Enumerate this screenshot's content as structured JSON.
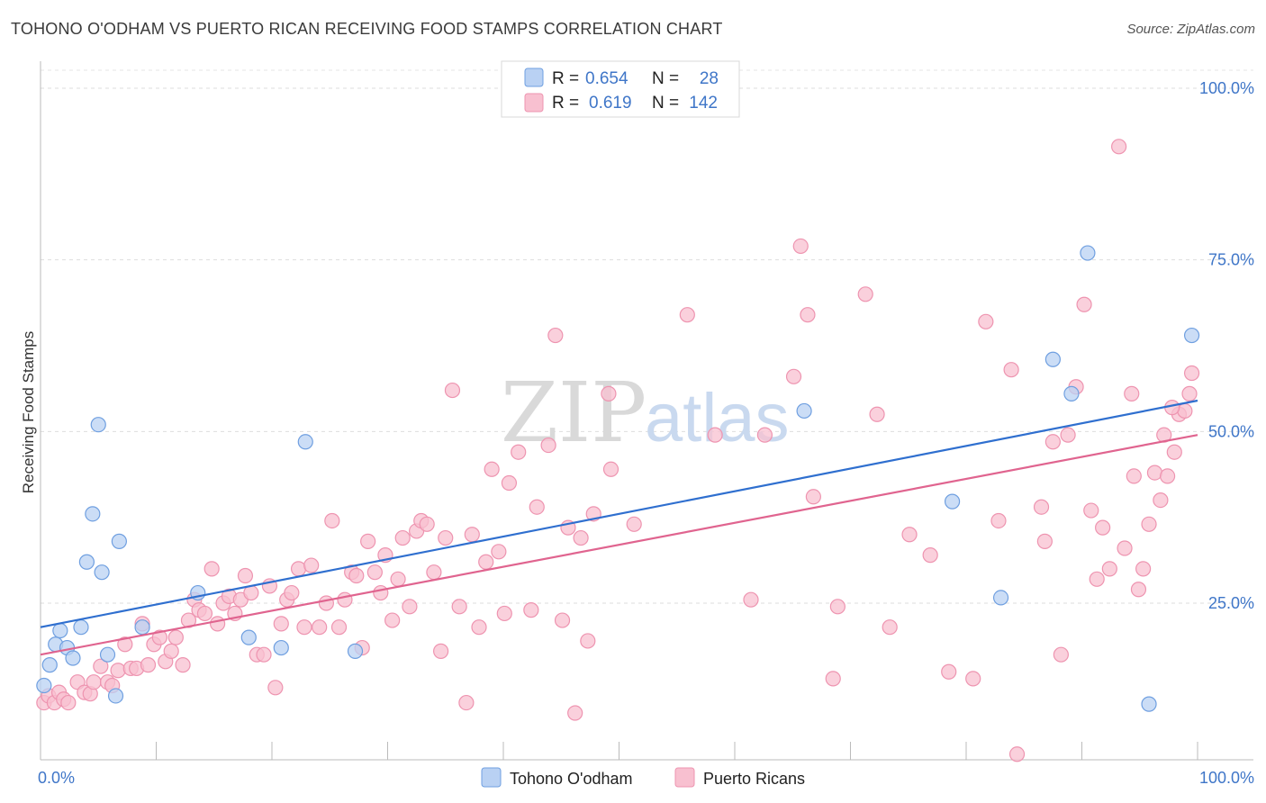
{
  "header": {
    "title": "TOHONO O'ODHAM VS PUERTO RICAN RECEIVING FOOD STAMPS CORRELATION CHART",
    "source": "Source: ZipAtlas.com"
  },
  "watermark": {
    "zip": "ZIP",
    "atlas": "atlas"
  },
  "legend": {
    "rows": [
      {
        "r_label": "R =",
        "r_value": "0.654",
        "n_label": "N =",
        "n_value": "28",
        "color": "#b9d1f3"
      },
      {
        "r_label": "R =",
        "r_value": "0.619",
        "n_label": "N =",
        "n_value": "142",
        "color": "#f8c0d0"
      }
    ]
  },
  "chart_data": {
    "type": "scatter",
    "title": "TOHONO O'ODHAM VS PUERTO RICAN RECEIVING FOOD STAMPS CORRELATION CHART",
    "xlabel": "",
    "ylabel": "Receiving Food Stamps",
    "xlim": [
      0,
      100
    ],
    "ylim": [
      0,
      100
    ],
    "x_tick_labels": [
      "0.0%",
      "100.0%"
    ],
    "y_tick_labels": [
      "25.0%",
      "50.0%",
      "75.0%",
      "100.0%"
    ],
    "y_ticks": [
      25,
      50,
      75,
      100
    ],
    "grid": "horizontal dashed",
    "legend_position": "top-center",
    "series": [
      {
        "name": "Tohono O'odham",
        "color": "#6f9fe0",
        "fill": "#b9d1f3",
        "trend": {
          "x0": 0,
          "y0": 21.5,
          "x1": 100,
          "y1": 54.5,
          "color": "#2f6fcf"
        },
        "points": [
          [
            0.3,
            13
          ],
          [
            0.8,
            16
          ],
          [
            1.3,
            19
          ],
          [
            1.7,
            21
          ],
          [
            2.3,
            18.5
          ],
          [
            2.8,
            17
          ],
          [
            3.5,
            21.5
          ],
          [
            4,
            31
          ],
          [
            4.5,
            38
          ],
          [
            5,
            51
          ],
          [
            5.3,
            29.5
          ],
          [
            5.8,
            17.5
          ],
          [
            6.5,
            11.5
          ],
          [
            6.8,
            34
          ],
          [
            8.8,
            21.5
          ],
          [
            13.6,
            26.5
          ],
          [
            18,
            20
          ],
          [
            20.8,
            18.5
          ],
          [
            22.9,
            48.5
          ],
          [
            27.2,
            18
          ],
          [
            66,
            53
          ],
          [
            78.8,
            39.8
          ],
          [
            83,
            25.8
          ],
          [
            87.5,
            60.5
          ],
          [
            89.1,
            55.5
          ],
          [
            90.5,
            76
          ],
          [
            99.5,
            64
          ],
          [
            95.8,
            10.3
          ]
        ]
      },
      {
        "name": "Puerto Ricans",
        "color": "#ee94b0",
        "fill": "#f8c0d0",
        "trend": {
          "x0": 0,
          "y0": 17.5,
          "x1": 100,
          "y1": 49.5,
          "color": "#e0648f"
        },
        "points": [
          [
            0.3,
            10.5
          ],
          [
            0.7,
            11.5
          ],
          [
            1.2,
            10.5
          ],
          [
            1.6,
            12
          ],
          [
            2,
            11
          ],
          [
            2.4,
            10.5
          ],
          [
            3.2,
            13.5
          ],
          [
            3.8,
            12
          ],
          [
            4.3,
            11.8
          ],
          [
            4.6,
            13.5
          ],
          [
            5.2,
            15.8
          ],
          [
            5.8,
            13.5
          ],
          [
            6.2,
            13
          ],
          [
            6.7,
            15.2
          ],
          [
            7.3,
            19
          ],
          [
            7.8,
            15.5
          ],
          [
            8.3,
            15.5
          ],
          [
            8.8,
            22
          ],
          [
            9.3,
            16
          ],
          [
            9.8,
            19
          ],
          [
            10.3,
            20
          ],
          [
            10.8,
            16.5
          ],
          [
            11.3,
            18
          ],
          [
            11.7,
            20
          ],
          [
            12.3,
            16
          ],
          [
            12.8,
            22.5
          ],
          [
            13.3,
            25.5
          ],
          [
            13.7,
            24
          ],
          [
            14.2,
            23.5
          ],
          [
            14.8,
            30
          ],
          [
            15.3,
            22
          ],
          [
            15.8,
            25
          ],
          [
            16.3,
            26
          ],
          [
            16.8,
            23.5
          ],
          [
            17.3,
            25.5
          ],
          [
            17.7,
            29
          ],
          [
            18.2,
            26.5
          ],
          [
            18.7,
            17.5
          ],
          [
            19.3,
            17.5
          ],
          [
            19.8,
            27.5
          ],
          [
            20.3,
            12.7
          ],
          [
            20.8,
            22
          ],
          [
            21.3,
            25.5
          ],
          [
            21.7,
            26.5
          ],
          [
            22.3,
            30
          ],
          [
            22.8,
            21.5
          ],
          [
            23.4,
            30.5
          ],
          [
            24.1,
            21.5
          ],
          [
            24.7,
            25
          ],
          [
            25.2,
            37
          ],
          [
            25.8,
            21.5
          ],
          [
            26.3,
            25.5
          ],
          [
            26.9,
            29.5
          ],
          [
            27.3,
            29
          ],
          [
            27.8,
            18.5
          ],
          [
            28.3,
            34
          ],
          [
            28.9,
            29.5
          ],
          [
            29.4,
            26.5
          ],
          [
            29.8,
            32
          ],
          [
            30.4,
            22.5
          ],
          [
            30.9,
            28.5
          ],
          [
            31.3,
            34.5
          ],
          [
            31.9,
            24.5
          ],
          [
            32.5,
            35.5
          ],
          [
            32.9,
            37
          ],
          [
            33.4,
            36.5
          ],
          [
            34,
            29.5
          ],
          [
            34.6,
            18
          ],
          [
            35,
            34.5
          ],
          [
            35.6,
            56
          ],
          [
            36.2,
            24.5
          ],
          [
            36.8,
            10.5
          ],
          [
            37.3,
            35
          ],
          [
            37.9,
            21.5
          ],
          [
            38.5,
            31
          ],
          [
            39,
            44.5
          ],
          [
            39.6,
            32.5
          ],
          [
            40.1,
            23.5
          ],
          [
            40.5,
            42.5
          ],
          [
            41.3,
            47
          ],
          [
            42.4,
            24
          ],
          [
            42.9,
            39
          ],
          [
            43.9,
            48
          ],
          [
            44.5,
            64
          ],
          [
            45.1,
            22.5
          ],
          [
            45.6,
            36
          ],
          [
            46.2,
            9
          ],
          [
            46.7,
            34.5
          ],
          [
            47.3,
            19.5
          ],
          [
            47.8,
            38
          ],
          [
            49.1,
            55.5
          ],
          [
            49.3,
            44.5
          ],
          [
            51.3,
            36.5
          ],
          [
            55.9,
            67
          ],
          [
            58.3,
            49.5
          ],
          [
            61.4,
            25.5
          ],
          [
            62.6,
            49.5
          ],
          [
            65.1,
            58
          ],
          [
            65.7,
            77
          ],
          [
            66.3,
            67
          ],
          [
            66.8,
            40.5
          ],
          [
            68.5,
            14
          ],
          [
            68.9,
            24.5
          ],
          [
            71.3,
            70
          ],
          [
            72.3,
            52.5
          ],
          [
            73.4,
            21.5
          ],
          [
            75.1,
            35
          ],
          [
            76.9,
            32
          ],
          [
            78.5,
            15
          ],
          [
            80.6,
            14
          ],
          [
            81.7,
            66
          ],
          [
            82.8,
            37
          ],
          [
            83.9,
            59
          ],
          [
            84.4,
            3
          ],
          [
            86.5,
            39
          ],
          [
            86.8,
            34
          ],
          [
            87.5,
            48.5
          ],
          [
            88.2,
            17.5
          ],
          [
            88.8,
            49.5
          ],
          [
            89.5,
            56.5
          ],
          [
            90.2,
            68.5
          ],
          [
            90.8,
            38.5
          ],
          [
            91.3,
            28.5
          ],
          [
            91.8,
            36
          ],
          [
            92.4,
            30
          ],
          [
            93.2,
            91.5
          ],
          [
            93.7,
            33
          ],
          [
            94.3,
            55.5
          ],
          [
            94.9,
            27
          ],
          [
            95.3,
            30
          ],
          [
            95.8,
            36.5
          ],
          [
            96.3,
            44
          ],
          [
            96.8,
            40
          ],
          [
            97.1,
            49.5
          ],
          [
            97.4,
            43.5
          ],
          [
            98,
            47
          ],
          [
            98.4,
            52.5
          ],
          [
            98.9,
            53
          ],
          [
            99.3,
            55.5
          ],
          [
            99.5,
            58.5
          ],
          [
            94.5,
            43.5
          ],
          [
            97.8,
            53.5
          ]
        ]
      }
    ]
  },
  "bottom_legend": {
    "items": [
      {
        "label": "Tohono O'odham",
        "color": "#b9d1f3",
        "stroke": "#6f9fe0"
      },
      {
        "label": "Puerto Ricans",
        "color": "#f8c0d0",
        "stroke": "#ee94b0"
      }
    ]
  }
}
